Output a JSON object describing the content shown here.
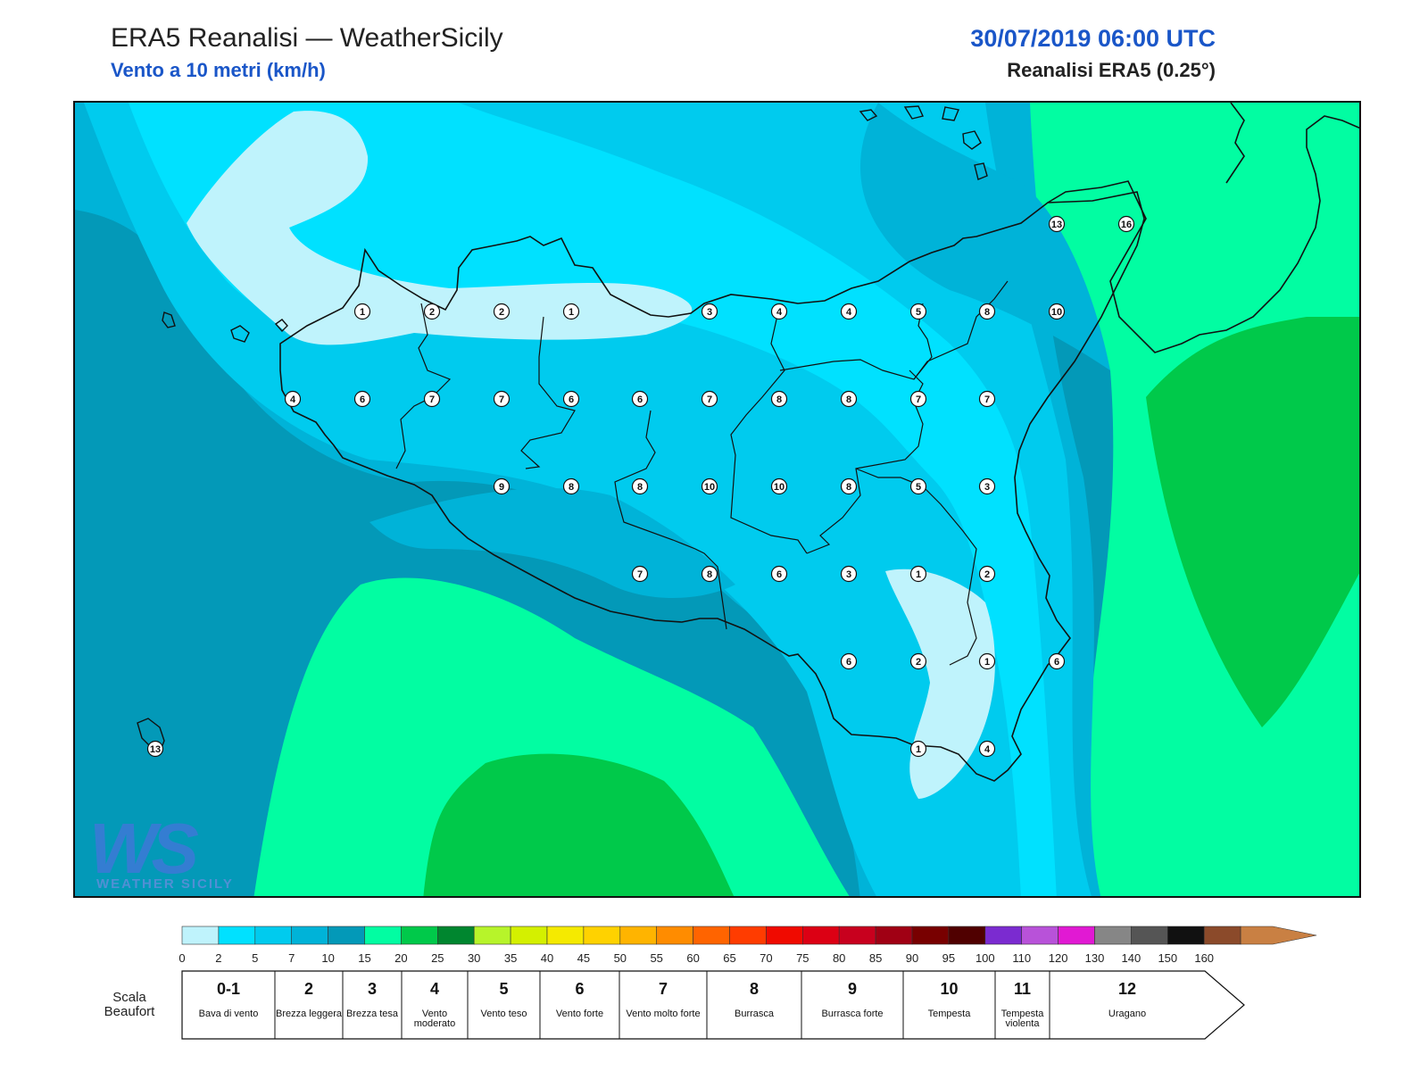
{
  "header": {
    "title": "ERA5 Reanalisi — WeatherSicily",
    "subtitle": "Vento a 10 metri (km/h)",
    "date": "30/07/2019 06:00 UTC",
    "source": "Reanalisi ERA5 (0.25°)"
  },
  "colors": {
    "level_0_2": "#bff3fc",
    "level_2_5": "#00e1ff",
    "level_5_7": "#00cbee",
    "level_7_10": "#00b3d8",
    "level_10_15": "#0399b8",
    "level_15_20": "#02fda2",
    "level_20_25": "#00c94a",
    "coast": "#111111"
  },
  "map": {
    "values": [
      "1",
      "2",
      "2",
      "1",
      "3",
      "4",
      "4",
      "5",
      "8",
      "10",
      "4",
      "6",
      "7",
      "7",
      "6",
      "6",
      "7",
      "8",
      "8",
      "7",
      "7",
      "9",
      "8",
      "8",
      "10",
      "10",
      "8",
      "5",
      "3",
      "7",
      "8",
      "6",
      "3",
      "1",
      "2",
      "6",
      "2",
      "1",
      "6",
      "1",
      "4",
      "13",
      "16",
      "13"
    ]
  },
  "logo": {
    "mark": "WS",
    "text": "WEATHER SICILY"
  },
  "scale": {
    "ticks": [
      "0",
      "2",
      "5",
      "7",
      "10",
      "15",
      "20",
      "25",
      "30",
      "35",
      "40",
      "45",
      "50",
      "55",
      "60",
      "65",
      "70",
      "75",
      "80",
      "85",
      "90",
      "95",
      "100",
      "110",
      "120",
      "130",
      "140",
      "150",
      "160"
    ],
    "colors": [
      "#bff3fc",
      "#00e1ff",
      "#00cbee",
      "#00b3d8",
      "#0399b8",
      "#02fda2",
      "#00c94a",
      "#00862f",
      "#b7f42a",
      "#d4f000",
      "#f5ea00",
      "#ffd200",
      "#ffb400",
      "#ff8c00",
      "#ff6400",
      "#ff3c00",
      "#f00a00",
      "#dc0014",
      "#c8001e",
      "#a00014",
      "#780000",
      "#500000",
      "#7b2bd0",
      "#b852d9",
      "#e119d3",
      "#868686",
      "#555555",
      "#111111",
      "#8b4a2a",
      "#c98043"
    ],
    "beaufort_title": "Scala Beaufort",
    "beaufort": [
      {
        "num": "0-1",
        "label": "Bava di vento"
      },
      {
        "num": "2",
        "label": "Brezza leggera"
      },
      {
        "num": "3",
        "label": "Brezza tesa"
      },
      {
        "num": "4",
        "label": "Vento moderato"
      },
      {
        "num": "5",
        "label": "Vento teso"
      },
      {
        "num": "6",
        "label": "Vento forte"
      },
      {
        "num": "7",
        "label": "Vento molto forte"
      },
      {
        "num": "8",
        "label": "Burrasca"
      },
      {
        "num": "9",
        "label": "Burrasca forte"
      },
      {
        "num": "10",
        "label": "Tempesta"
      },
      {
        "num": "11",
        "label": "Tempesta violenta"
      },
      {
        "num": "12",
        "label": "Uragano"
      }
    ]
  }
}
